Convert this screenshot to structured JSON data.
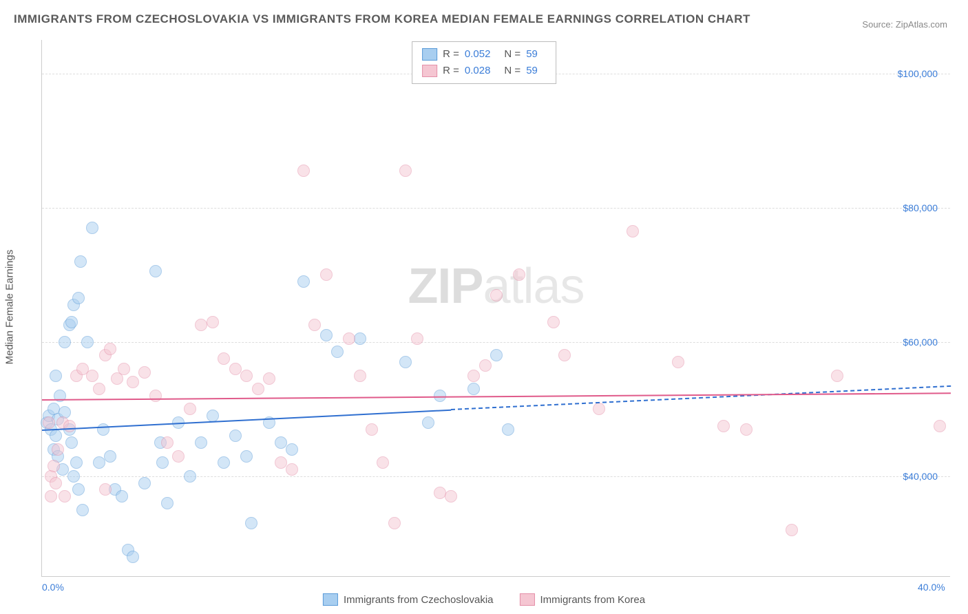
{
  "title": "IMMIGRANTS FROM CZECHOSLOVAKIA VS IMMIGRANTS FROM KOREA MEDIAN FEMALE EARNINGS CORRELATION CHART",
  "source_label": "Source:",
  "source_name": "ZipAtlas.com",
  "watermark": {
    "bold": "ZIP",
    "light": "atlas"
  },
  "chart": {
    "type": "scatter",
    "ylabel": "Median Female Earnings",
    "xlim": [
      0,
      40
    ],
    "ylim": [
      25000,
      105000
    ],
    "yticks": [
      40000,
      60000,
      80000,
      100000
    ],
    "ytick_labels": [
      "$40,000",
      "$60,000",
      "$80,000",
      "$100,000"
    ],
    "xticks": [
      0,
      40
    ],
    "xtick_labels": [
      "0.0%",
      "40.0%"
    ],
    "background_color": "#ffffff",
    "grid_color": "#dddddd",
    "marker_radius": 9,
    "marker_opacity": 0.5,
    "series": [
      {
        "id": "czech",
        "label": "Immigrants from Czechoslovakia",
        "color_fill": "#a8cef0",
        "color_stroke": "#5a9bd8",
        "trend_color": "#2f6fd0",
        "r": "0.052",
        "n": "59",
        "trend": {
          "x1": 0,
          "y1": 47000,
          "x2": 18,
          "y2": 50000,
          "ext_x2": 40,
          "ext_y2": 53500
        },
        "points": [
          [
            0.2,
            48000
          ],
          [
            0.3,
            49000
          ],
          [
            0.4,
            47000
          ],
          [
            0.5,
            50000
          ],
          [
            0.6,
            46000
          ],
          [
            0.5,
            44000
          ],
          [
            0.8,
            52000
          ],
          [
            0.7,
            48500
          ],
          [
            1.0,
            49500
          ],
          [
            1.2,
            47000
          ],
          [
            1.3,
            45000
          ],
          [
            1.5,
            42000
          ],
          [
            0.7,
            43000
          ],
          [
            0.9,
            41000
          ],
          [
            1.4,
            40000
          ],
          [
            1.6,
            38000
          ],
          [
            1.8,
            35000
          ],
          [
            0.6,
            55000
          ],
          [
            1.0,
            60000
          ],
          [
            1.2,
            62500
          ],
          [
            1.3,
            63000
          ],
          [
            1.4,
            65500
          ],
          [
            1.6,
            66500
          ],
          [
            2.0,
            60000
          ],
          [
            1.7,
            72000
          ],
          [
            2.2,
            77000
          ],
          [
            2.5,
            42000
          ],
          [
            2.7,
            47000
          ],
          [
            3.0,
            43000
          ],
          [
            3.2,
            38000
          ],
          [
            3.5,
            37000
          ],
          [
            3.8,
            29000
          ],
          [
            4.0,
            28000
          ],
          [
            4.5,
            39000
          ],
          [
            5.0,
            70500
          ],
          [
            5.2,
            45000
          ],
          [
            5.3,
            42000
          ],
          [
            5.5,
            36000
          ],
          [
            6.0,
            48000
          ],
          [
            6.5,
            40000
          ],
          [
            7.0,
            45000
          ],
          [
            7.5,
            49000
          ],
          [
            8.0,
            42000
          ],
          [
            8.5,
            46000
          ],
          [
            9.0,
            43000
          ],
          [
            9.2,
            33000
          ],
          [
            10.0,
            48000
          ],
          [
            10.5,
            45000
          ],
          [
            11.0,
            44000
          ],
          [
            11.5,
            69000
          ],
          [
            12.5,
            61000
          ],
          [
            13.0,
            58500
          ],
          [
            14.0,
            60500
          ],
          [
            16.0,
            57000
          ],
          [
            17.5,
            52000
          ],
          [
            19.0,
            53000
          ],
          [
            20.0,
            58000
          ],
          [
            20.5,
            47000
          ],
          [
            17.0,
            48000
          ]
        ]
      },
      {
        "id": "korea",
        "label": "Immigrants from Korea",
        "color_fill": "#f5c6d2",
        "color_stroke": "#e48fa8",
        "trend_color": "#e05a8a",
        "r": "0.028",
        "n": "59",
        "trend": {
          "x1": 0,
          "y1": 51500,
          "x2": 40,
          "y2": 52500
        },
        "points": [
          [
            0.3,
            48000
          ],
          [
            0.4,
            40000
          ],
          [
            0.5,
            41500
          ],
          [
            0.6,
            39000
          ],
          [
            0.7,
            44000
          ],
          [
            0.9,
            48000
          ],
          [
            1.2,
            47500
          ],
          [
            1.5,
            55000
          ],
          [
            1.8,
            56000
          ],
          [
            2.2,
            55000
          ],
          [
            2.5,
            53000
          ],
          [
            2.8,
            58000
          ],
          [
            3.0,
            59000
          ],
          [
            3.3,
            54500
          ],
          [
            3.6,
            56000
          ],
          [
            4.0,
            54000
          ],
          [
            4.5,
            55500
          ],
          [
            5.0,
            52000
          ],
          [
            5.5,
            45000
          ],
          [
            6.0,
            43000
          ],
          [
            6.5,
            50000
          ],
          [
            7.0,
            62500
          ],
          [
            7.5,
            63000
          ],
          [
            8.0,
            57500
          ],
          [
            8.5,
            56000
          ],
          [
            9.0,
            55000
          ],
          [
            9.5,
            53000
          ],
          [
            10.0,
            54500
          ],
          [
            10.5,
            42000
          ],
          [
            11.0,
            41000
          ],
          [
            11.5,
            85500
          ],
          [
            12.0,
            62500
          ],
          [
            12.5,
            70000
          ],
          [
            13.5,
            60500
          ],
          [
            14.0,
            55000
          ],
          [
            14.5,
            47000
          ],
          [
            15.0,
            42000
          ],
          [
            15.5,
            33000
          ],
          [
            16.0,
            85500
          ],
          [
            16.5,
            60500
          ],
          [
            17.5,
            37500
          ],
          [
            18.0,
            37000
          ],
          [
            19.0,
            55000
          ],
          [
            19.5,
            56500
          ],
          [
            20.0,
            67000
          ],
          [
            21.0,
            70000
          ],
          [
            22.5,
            63000
          ],
          [
            23.0,
            58000
          ],
          [
            24.5,
            50000
          ],
          [
            26.0,
            76500
          ],
          [
            28.0,
            57000
          ],
          [
            30.0,
            47500
          ],
          [
            31.0,
            47000
          ],
          [
            33.0,
            32000
          ],
          [
            35.0,
            55000
          ],
          [
            39.5,
            47500
          ],
          [
            0.4,
            37000
          ],
          [
            1.0,
            37000
          ],
          [
            2.8,
            38000
          ]
        ]
      }
    ]
  },
  "legend_top": {
    "r_label": "R =",
    "n_label": "N ="
  },
  "colors": {
    "title": "#5a5a5a",
    "axis_text": "#555555",
    "tick_value": "#3b7dd8",
    "source": "#888888"
  }
}
